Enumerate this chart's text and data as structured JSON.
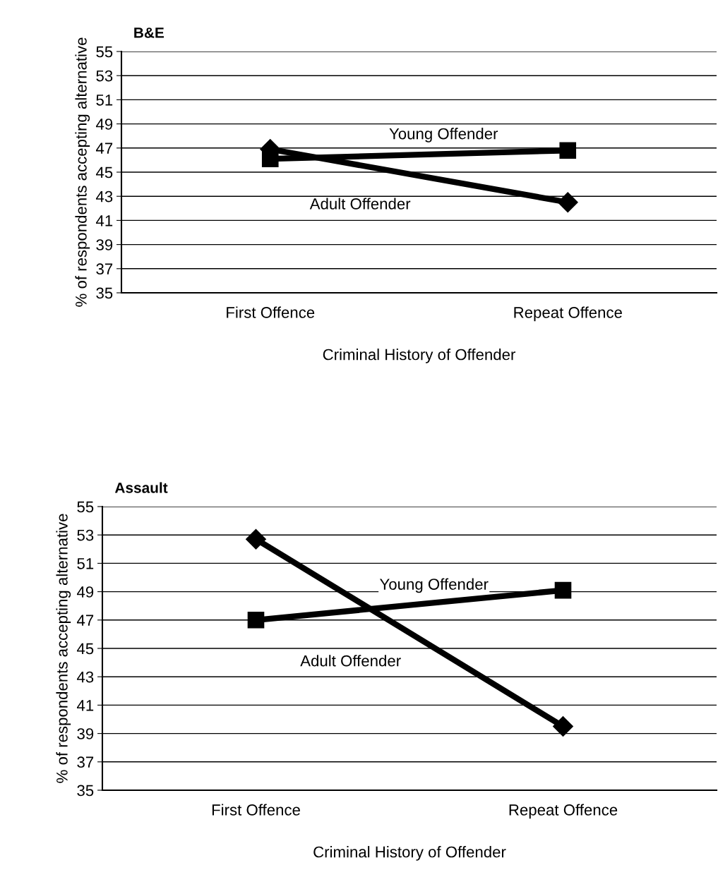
{
  "chart_data": [
    {
      "type": "line",
      "title": "B&E",
      "xlabel": "Criminal History of Offender",
      "ylabel": "% of respondents accepting alternative",
      "categories": [
        "First Offence",
        "Repeat Offence"
      ],
      "ylim": [
        35,
        55
      ],
      "yticks": [
        35,
        37,
        39,
        41,
        43,
        45,
        47,
        49,
        51,
        53,
        55
      ],
      "grid": "y",
      "legend": false,
      "series": [
        {
          "name": "Young Offender",
          "color": "#000000",
          "marker": "square",
          "values": [
            46.1,
            46.8
          ]
        },
        {
          "name": "Adult Offender",
          "color": "#000000",
          "marker": "diamond",
          "values": [
            46.9,
            42.5
          ]
        }
      ]
    },
    {
      "type": "line",
      "title": "Assault",
      "xlabel": "Criminal History of Offender",
      "ylabel": "% of respondents accepting alternative",
      "categories": [
        "First Offence",
        "Repeat Offence"
      ],
      "ylim": [
        35,
        55
      ],
      "yticks": [
        35,
        37,
        39,
        41,
        43,
        45,
        47,
        49,
        51,
        53,
        55
      ],
      "grid": "y",
      "legend": false,
      "series": [
        {
          "name": "Young Offender",
          "color": "#000000",
          "marker": "square",
          "values": [
            47.0,
            49.1
          ]
        },
        {
          "name": "Adult Offender",
          "color": "#000000",
          "marker": "diamond",
          "values": [
            52.7,
            39.5
          ]
        }
      ]
    }
  ]
}
